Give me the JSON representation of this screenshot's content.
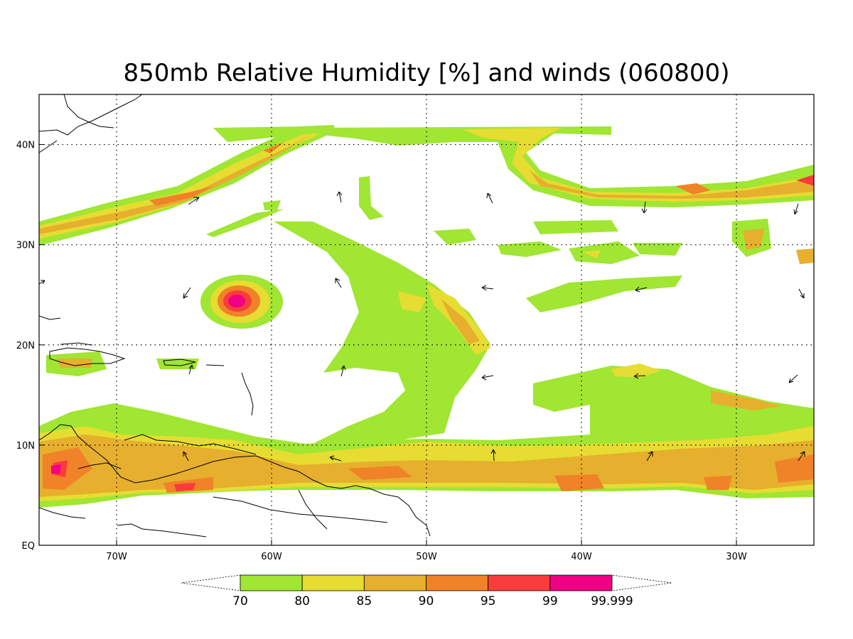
{
  "title": "850mb Relative Humidity [%] and winds (060800)",
  "map": {
    "lon_range": [
      -75,
      -25
    ],
    "lat_range": [
      0,
      45
    ],
    "lon_ticks": [
      {
        "value": -70,
        "label": "70W"
      },
      {
        "value": -60,
        "label": "60W"
      },
      {
        "value": -50,
        "label": "50W"
      },
      {
        "value": -40,
        "label": "40W"
      },
      {
        "value": -30,
        "label": "30W"
      }
    ],
    "lat_ticks": [
      {
        "value": 0,
        "label": "EQ"
      },
      {
        "value": 10,
        "label": "10N"
      },
      {
        "value": 20,
        "label": "20N"
      },
      {
        "value": 30,
        "label": "30N"
      },
      {
        "value": 40,
        "label": "40N"
      }
    ],
    "grid": true
  },
  "colorbar": {
    "bins": [
      {
        "from": "70",
        "to": "80",
        "color": "#a0e632"
      },
      {
        "from": "80",
        "to": "85",
        "color": "#e6dc32"
      },
      {
        "from": "85",
        "to": "90",
        "color": "#e6af2d"
      },
      {
        "from": "90",
        "to": "95",
        "color": "#f08228"
      },
      {
        "from": "95",
        "to": "99",
        "color": "#fa3c3c"
      },
      {
        "from": "99",
        "to": "99.999",
        "color": "#f00082"
      }
    ],
    "labels": [
      "70",
      "80",
      "85",
      "90",
      "95",
      "99",
      "99.999"
    ]
  }
}
